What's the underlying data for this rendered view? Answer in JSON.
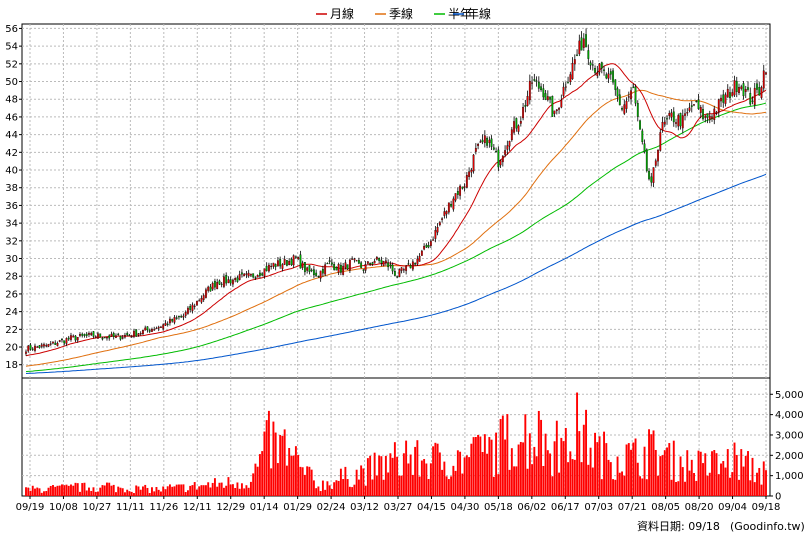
{
  "chart_data": {
    "type": "candlestick",
    "legend": [
      {
        "name": "月線",
        "color": "#cc0000"
      },
      {
        "name": "季線",
        "color": "#e07010"
      },
      {
        "name": "半年",
        "color": "#00bb00"
      },
      {
        "name": "年線",
        "color": "#0055cc"
      }
    ],
    "price_axis": {
      "ylim": [
        16.5,
        56.5
      ],
      "ticks": [
        18,
        20,
        22,
        24,
        26,
        28,
        30,
        32,
        34,
        36,
        38,
        40,
        42,
        44,
        46,
        48,
        50,
        52,
        54,
        56
      ]
    },
    "volume_axis": {
      "ylim": [
        0,
        5800
      ],
      "ticks": [
        0,
        1000,
        2000,
        3000,
        4000,
        5000
      ],
      "tick_labels": [
        "0",
        "1,000",
        "2,000",
        "3,000",
        "4,000",
        "5,000"
      ]
    },
    "x_ticks": [
      "09/19",
      "10/08",
      "10/27",
      "11/11",
      "11/26",
      "12/11",
      "12/29",
      "01/14",
      "01/29",
      "02/24",
      "03/12",
      "03/27",
      "04/15",
      "04/30",
      "05/18",
      "06/02",
      "06/17",
      "07/03",
      "07/21",
      "08/05",
      "08/20",
      "09/04",
      "09/18"
    ],
    "price_anchors": [
      [
        0,
        19.8
      ],
      [
        10,
        20.2
      ],
      [
        20,
        21
      ],
      [
        30,
        21.3
      ],
      [
        40,
        21.1
      ],
      [
        50,
        21.6
      ],
      [
        60,
        22.4
      ],
      [
        70,
        23.5
      ],
      [
        80,
        26.2
      ],
      [
        85,
        27.4
      ],
      [
        90,
        27.5
      ],
      [
        95,
        27.8
      ],
      [
        100,
        28
      ],
      [
        105,
        28.6
      ],
      [
        110,
        29.3
      ],
      [
        115,
        29.5
      ],
      [
        120,
        30
      ],
      [
        125,
        28.5
      ],
      [
        130,
        28.3
      ],
      [
        135,
        29.5
      ],
      [
        140,
        28.8
      ],
      [
        145,
        29.6
      ],
      [
        150,
        28.9
      ],
      [
        155,
        29.8
      ],
      [
        160,
        29.5
      ],
      [
        165,
        28.1
      ],
      [
        170,
        29
      ],
      [
        175,
        30.2
      ],
      [
        180,
        32
      ],
      [
        185,
        34.5
      ],
      [
        190,
        37
      ],
      [
        195,
        38.5
      ],
      [
        200,
        42
      ],
      [
        205,
        43.5
      ],
      [
        210,
        41
      ],
      [
        215,
        44
      ],
      [
        220,
        46
      ],
      [
        225,
        50
      ],
      [
        230,
        49
      ],
      [
        235,
        46
      ],
      [
        240,
        50
      ],
      [
        245,
        53
      ],
      [
        248,
        55
      ],
      [
        252,
        52
      ],
      [
        256,
        51
      ],
      [
        260,
        50
      ],
      [
        265,
        47
      ],
      [
        270,
        49
      ],
      [
        273,
        44
      ],
      [
        276,
        40
      ],
      [
        278,
        38
      ],
      [
        282,
        44.5
      ],
      [
        287,
        46
      ],
      [
        292,
        45.5
      ],
      [
        297,
        47.5
      ],
      [
        302,
        45.8
      ],
      [
        307,
        47
      ],
      [
        312,
        48.5
      ],
      [
        317,
        50
      ],
      [
        322,
        48
      ],
      [
        326,
        49
      ],
      [
        328,
        51
      ]
    ],
    "volume_peaks": [
      [
        0,
        500
      ],
      [
        30,
        700
      ],
      [
        60,
        500
      ],
      [
        100,
        1200
      ],
      [
        108,
        4200
      ],
      [
        110,
        4100
      ],
      [
        130,
        800
      ],
      [
        165,
        2700
      ],
      [
        200,
        2900
      ],
      [
        220,
        4900
      ],
      [
        230,
        4000
      ],
      [
        240,
        3500
      ],
      [
        245,
        5200
      ],
      [
        255,
        3300
      ],
      [
        270,
        3000
      ],
      [
        280,
        3400
      ],
      [
        290,
        2600
      ],
      [
        305,
        2200
      ],
      [
        315,
        2800
      ],
      [
        328,
        1700
      ]
    ]
  },
  "footer": {
    "label": "資料日期: 09/18",
    "source": "(Goodinfo.tw)"
  }
}
